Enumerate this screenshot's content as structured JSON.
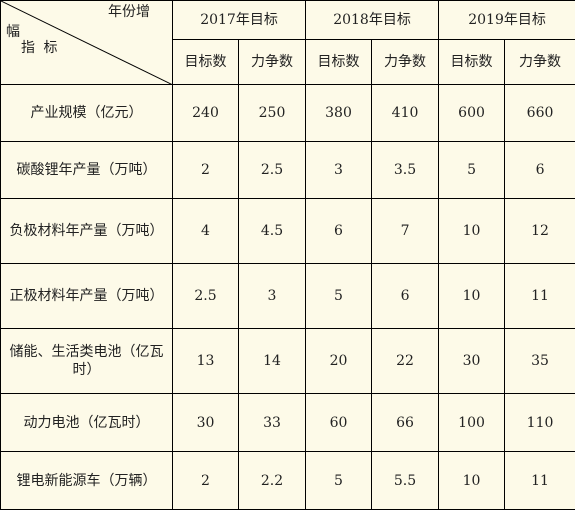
{
  "header": {
    "corner_top": "年份增",
    "corner_left": "幅",
    "corner_bottom": "指 标",
    "years": [
      "2017年目标",
      "2018年目标",
      "2019年目标"
    ],
    "sub": [
      "目标数",
      "力争数",
      "目标数",
      "力争数",
      "目标数",
      "力争数"
    ]
  },
  "rows": [
    {
      "label": "产业规模（亿元）",
      "values": [
        "240",
        "250",
        "380",
        "410",
        "600",
        "660"
      ]
    },
    {
      "label": "碳酸锂年产量（万吨）",
      "values": [
        "2",
        "2.5",
        "3",
        "3.5",
        "5",
        "6"
      ]
    },
    {
      "label": "负极材料年产量（万吨）",
      "values": [
        "4",
        "4.5",
        "6",
        "7",
        "10",
        "12"
      ]
    },
    {
      "label": "正极材料年产量（万吨）",
      "values": [
        "2.5",
        "3",
        "5",
        "6",
        "10",
        "11"
      ]
    },
    {
      "label": "储能、生活类电池（亿瓦时）",
      "values": [
        "13",
        "14",
        "20",
        "22",
        "30",
        "35"
      ]
    },
    {
      "label": "动力电池（亿瓦时）",
      "values": [
        "30",
        "33",
        "60",
        "66",
        "100",
        "110"
      ]
    },
    {
      "label": "锂电新能源车（万辆）",
      "values": [
        "2",
        "2.2",
        "5",
        "5.5",
        "10",
        "11"
      ]
    }
  ]
}
